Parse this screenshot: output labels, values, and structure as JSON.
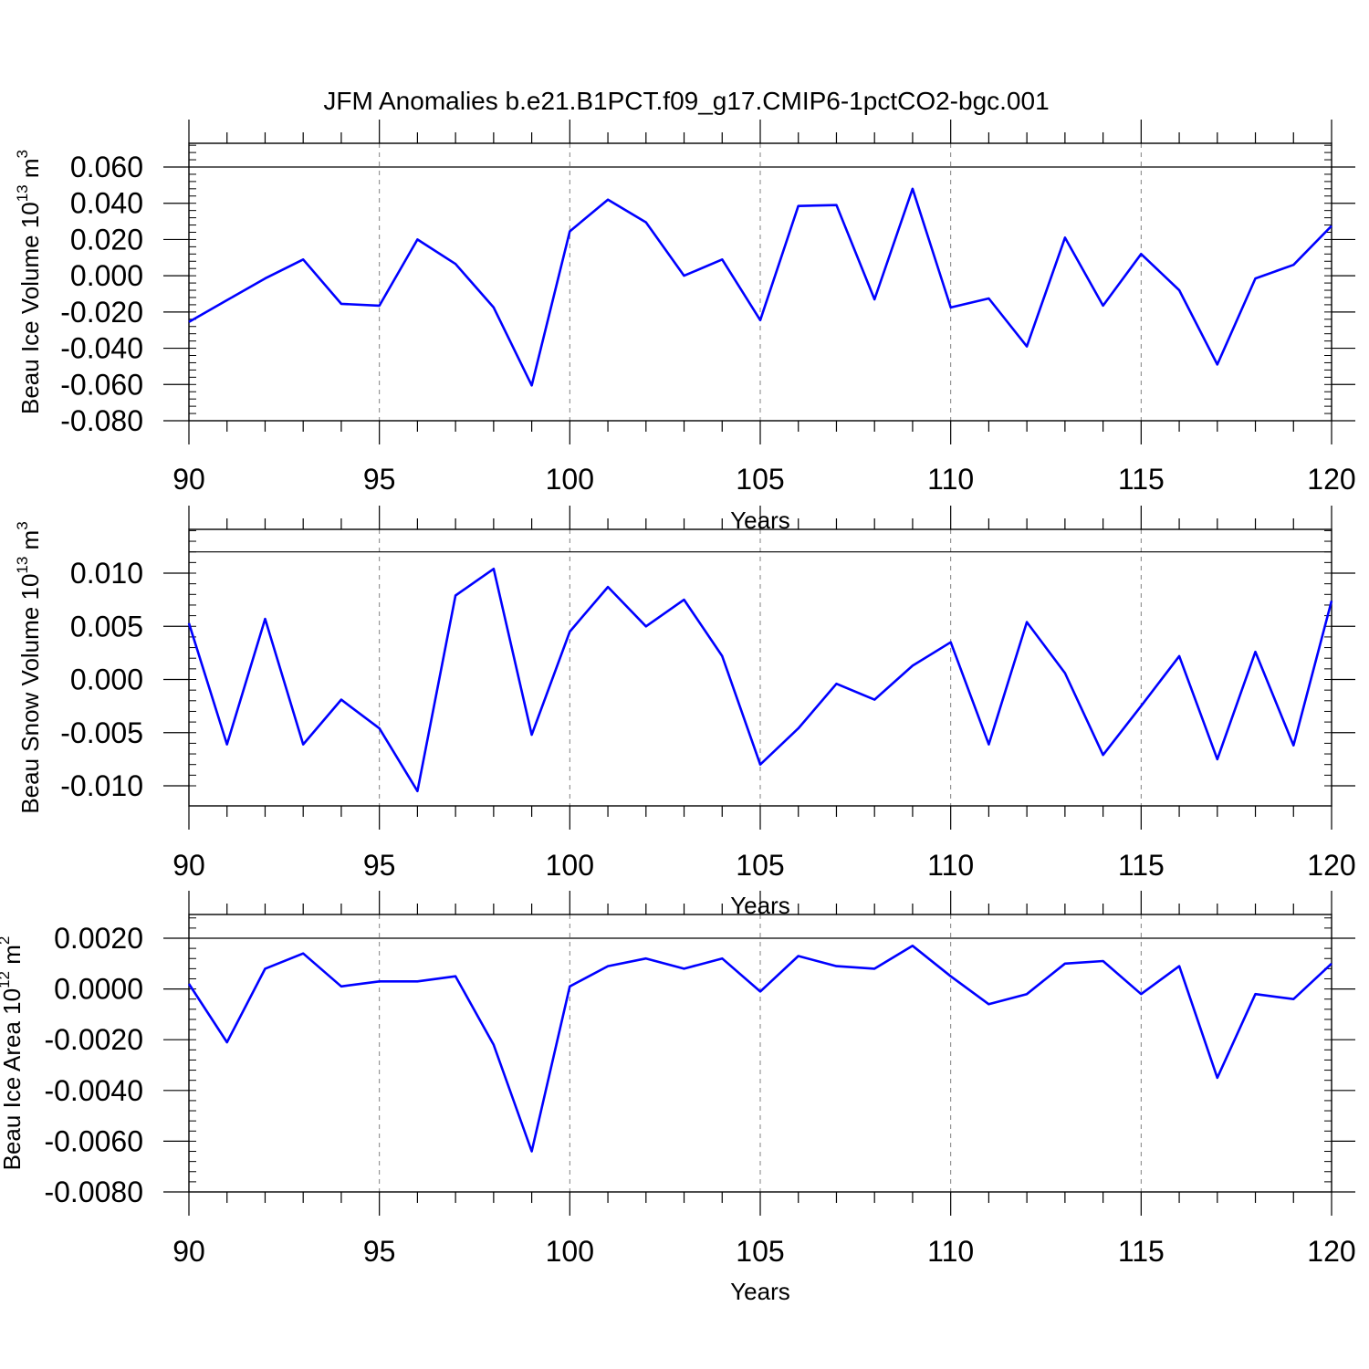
{
  "title": "JFM Anomalies b.e21.B1PCT.f09_g17.CMIP6-1pctCO2-bgc.001",
  "colors": {
    "line": "#0000ff",
    "axis": "#000000",
    "grid": "#808080"
  },
  "chart_data": [
    {
      "type": "line",
      "title": "",
      "xlabel": "Years",
      "ylabel": "Beau Ice Volume 10",
      "ylabel_exp": "13",
      "ylabel_unit": " m",
      "ylabel_unit_exp": "3",
      "xlim": [
        90,
        120
      ],
      "ylim": [
        -0.08,
        0.07
      ],
      "x_ticks": [
        90,
        95,
        100,
        105,
        110,
        115,
        120
      ],
      "x_tick_labels": [
        "90",
        "95",
        "100",
        "105",
        "110",
        "115",
        "120"
      ],
      "y_ticks": [
        0.06,
        0.04,
        0.02,
        0.0,
        -0.02,
        -0.04,
        -0.06,
        -0.08
      ],
      "y_tick_labels": [
        "0.060",
        "0.040",
        "0.020",
        "0.000",
        "-0.020",
        "-0.040",
        "-0.060",
        "-0.080"
      ],
      "y_minor_step": 0.004,
      "vgrid": [
        95,
        100,
        105,
        110,
        115
      ],
      "hline": 0.06,
      "series": [
        {
          "x": [
            90,
            91,
            92,
            93,
            94,
            95,
            96,
            97,
            98,
            99,
            100,
            101,
            102,
            103,
            104,
            105,
            106,
            107,
            108,
            109,
            110,
            111,
            112,
            113,
            114,
            115,
            116,
            117,
            118,
            119,
            120
          ],
          "values": [
            -0.0255,
            -0.0135,
            -0.0015,
            0.009,
            -0.0155,
            -0.0165,
            0.02,
            0.0065,
            -0.0175,
            -0.0605,
            0.0245,
            0.042,
            0.0295,
            0.0,
            0.009,
            -0.0245,
            0.0385,
            0.039,
            -0.013,
            0.048,
            -0.0175,
            -0.0125,
            -0.039,
            0.021,
            -0.0165,
            0.012,
            -0.008,
            -0.049,
            -0.0015,
            0.006,
            0.0275
          ]
        }
      ]
    },
    {
      "type": "line",
      "title": "",
      "xlabel": "Years",
      "ylabel": "Beau Snow Volume 10",
      "ylabel_exp": "13",
      "ylabel_unit": " m",
      "ylabel_unit_exp": "3",
      "xlim": [
        90,
        120
      ],
      "ylim": [
        -0.012,
        0.014
      ],
      "x_ticks": [
        90,
        95,
        100,
        105,
        110,
        115,
        120
      ],
      "x_tick_labels": [
        "90",
        "95",
        "100",
        "105",
        "110",
        "115",
        "120"
      ],
      "y_ticks": [
        0.01,
        0.005,
        0.0,
        -0.005,
        -0.01
      ],
      "y_tick_labels": [
        "0.010",
        "0.005",
        "0.000",
        "-0.005",
        "-0.010"
      ],
      "y_minor_step": 0.001,
      "vgrid": [
        95,
        100,
        105,
        110,
        115
      ],
      "hline": 0.012,
      "series": [
        {
          "x": [
            90,
            91,
            92,
            93,
            94,
            95,
            96,
            97,
            98,
            99,
            100,
            101,
            102,
            103,
            104,
            105,
            106,
            107,
            108,
            109,
            110,
            111,
            112,
            113,
            114,
            115,
            116,
            117,
            118,
            119,
            120
          ],
          "values": [
            0.0053,
            -0.0061,
            0.0057,
            -0.0061,
            -0.0019,
            -0.0046,
            -0.0105,
            0.0079,
            0.0104,
            -0.0052,
            0.0045,
            0.0087,
            0.005,
            0.0075,
            0.0022,
            -0.008,
            -0.0046,
            -0.0004,
            -0.0019,
            0.0013,
            0.0035,
            -0.0061,
            0.0054,
            0.0006,
            -0.0071,
            -0.0025,
            0.0022,
            -0.0075,
            0.0026,
            -0.0062,
            0.0074
          ]
        }
      ]
    },
    {
      "type": "line",
      "title": "",
      "xlabel": "Years",
      "ylabel": "Beau Ice Area 10",
      "ylabel_exp": "12",
      "ylabel_unit": " m",
      "ylabel_unit_exp": "2",
      "xlim": [
        90,
        120
      ],
      "ylim": [
        -0.008,
        0.003
      ],
      "x_ticks": [
        90,
        95,
        100,
        105,
        110,
        115,
        120
      ],
      "x_tick_labels": [
        "90",
        "95",
        "100",
        "105",
        "110",
        "115",
        "120"
      ],
      "y_ticks": [
        0.002,
        0.0,
        -0.002,
        -0.004,
        -0.006,
        -0.008
      ],
      "y_tick_labels": [
        "0.0020",
        "0.0000",
        "-0.0020",
        "-0.0040",
        "-0.0060",
        "-0.0080"
      ],
      "y_minor_step": 0.0004,
      "vgrid": [
        95,
        100,
        105,
        110,
        115
      ],
      "hline": 0.002,
      "series": [
        {
          "x": [
            90,
            91,
            92,
            93,
            94,
            95,
            96,
            97,
            98,
            99,
            100,
            101,
            102,
            103,
            104,
            105,
            106,
            107,
            108,
            109,
            110,
            111,
            112,
            113,
            114,
            115,
            116,
            117,
            118,
            119,
            120
          ],
          "values": [
            0.0002,
            -0.0021,
            0.0008,
            0.0014,
            0.0001,
            0.0003,
            0.0003,
            0.0005,
            -0.0022,
            -0.0064,
            0.0001,
            0.0009,
            0.0012,
            0.0008,
            0.0012,
            -0.0001,
            0.0013,
            0.0009,
            0.0008,
            0.0017,
            0.0005,
            -0.0006,
            -0.0002,
            0.001,
            0.0011,
            -0.0002,
            0.0009,
            -0.0035,
            -0.0002,
            -0.0004,
            0.001
          ]
        }
      ]
    }
  ]
}
